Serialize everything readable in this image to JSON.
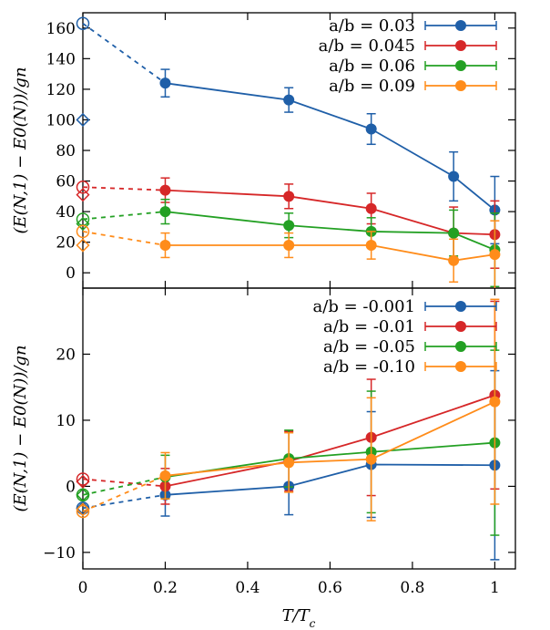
{
  "chart_data": [
    {
      "type": "line",
      "panel": "top",
      "xlabel": "T/T_c",
      "ylabel": "(E(N,1) − E0(N))/gn",
      "xlim": [
        0,
        1.05
      ],
      "ylim": [
        -10,
        170
      ],
      "yticks": [
        0,
        20,
        40,
        60,
        80,
        100,
        120,
        140,
        160
      ],
      "ytick_labels": [
        "0",
        "20",
        "40",
        "60",
        "80",
        "100",
        "120",
        "140",
        "160"
      ],
      "legend_position": "top-right",
      "series": [
        {
          "name": "a/b = 0.03",
          "color": "#1f5fa8",
          "x": [
            0.2,
            0.5,
            0.7,
            0.9,
            1.0
          ],
          "y": [
            124,
            113,
            94,
            63,
            41
          ],
          "err": [
            9,
            8,
            10,
            16,
            22
          ],
          "extrap_circle": 163,
          "extrap_diamond": 100
        },
        {
          "name": "a/b = 0.045",
          "color": "#d62728",
          "x": [
            0.2,
            0.5,
            0.7,
            0.9,
            1.0
          ],
          "y": [
            54,
            50,
            42,
            26,
            25
          ],
          "err": [
            8,
            8,
            10,
            17,
            22
          ],
          "extrap_circle": 56,
          "extrap_diamond": 51
        },
        {
          "name": "a/b = 0.06",
          "color": "#23a023",
          "x": [
            0.2,
            0.5,
            0.7,
            0.9,
            1.0
          ],
          "y": [
            40,
            31,
            27,
            26,
            15
          ],
          "err": [
            8,
            8,
            9,
            15,
            24
          ],
          "extrap_circle": 35,
          "extrap_diamond": 32
        },
        {
          "name": "a/b = 0.09",
          "color": "#ff8c1a",
          "x": [
            0.2,
            0.5,
            0.7,
            0.9,
            1.0
          ],
          "y": [
            18,
            18,
            18,
            8,
            12
          ],
          "err": [
            8,
            8,
            9,
            14,
            22
          ],
          "extrap_circle": 27,
          "extrap_diamond": 18
        }
      ]
    },
    {
      "type": "line",
      "panel": "bottom",
      "xlabel": "T/T_c",
      "ylabel": "(E(N,1) − E0(N))/gn",
      "xlim": [
        0,
        1.05
      ],
      "ylim": [
        -12.5,
        30
      ],
      "xticks": [
        0,
        0.2,
        0.4,
        0.6,
        0.8,
        1
      ],
      "xtick_labels": [
        "0",
        "0.2",
        "0.4",
        "0.6",
        "0.8",
        "1"
      ],
      "yticks": [
        -10,
        0,
        10,
        20
      ],
      "ytick_labels": [
        "−10",
        "0",
        "10",
        "20"
      ],
      "legend_position": "top-right",
      "series": [
        {
          "name": "a/b = -0.001",
          "color": "#1f5fa8",
          "x": [
            0.2,
            0.5,
            0.7,
            1.0
          ],
          "y": [
            -1.3,
            0.0,
            3.3,
            3.2
          ],
          "err": [
            3.2,
            4.3,
            8.0,
            14.3
          ],
          "extrap_circle": -3.3,
          "extrap_diamond": -3.3
        },
        {
          "name": "a/b = -0.01",
          "color": "#d62728",
          "x": [
            0.2,
            0.5,
            0.7,
            1.0
          ],
          "y": [
            0.0,
            3.8,
            7.4,
            13.8
          ],
          "err": [
            2.7,
            4.5,
            8.8,
            14.2
          ],
          "extrap_circle": 1.1,
          "extrap_diamond": 0.7
        },
        {
          "name": "a/b = -0.05",
          "color": "#23a023",
          "x": [
            0.2,
            0.5,
            0.7,
            1.0
          ],
          "y": [
            1.4,
            4.2,
            5.2,
            6.6
          ],
          "err": [
            3.3,
            4.3,
            9.2,
            14.0
          ],
          "extrap_circle": -1.3,
          "extrap_diamond": -1.3
        },
        {
          "name": "a/b = -0.10",
          "color": "#ff8c1a",
          "x": [
            0.2,
            0.5,
            0.7,
            1.0
          ],
          "y": [
            1.6,
            3.6,
            4.1,
            12.8
          ],
          "err": [
            3.5,
            4.5,
            9.3,
            15.5
          ],
          "extrap_circle": -3.8,
          "extrap_diamond": -3.5
        }
      ]
    }
  ]
}
